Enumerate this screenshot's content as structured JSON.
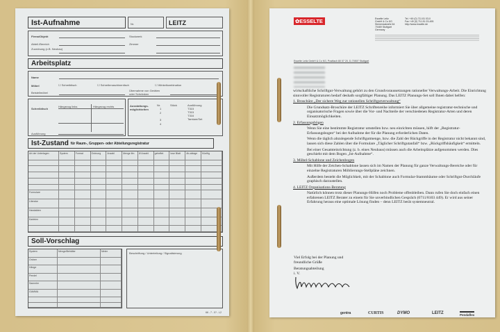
{
  "left_form": {
    "title": "Ist-Aufnahme",
    "no_label": "Nr.",
    "brand": "LEITZ",
    "fields": [
      "Firma/Objekt",
      "Abteil./Bereich",
      "Zuordnung (z.B. Neubau)",
      "Stockwerk",
      "Zimmer"
    ],
    "section_arbeitsplatz": "Arbeitsplatz",
    "name_label": "Name",
    "moebel_label": "Möbel",
    "beistell_label": "Beistellmöbel",
    "checkboxes": [
      "Schreibtisch",
      "Schreibmaschinentisch",
      "Winkelkombination"
    ],
    "uebernahme": "Übernahme von Geräten oder Schränken",
    "schreibtisch": "Schreibtisch",
    "haengezug_links": "Hängezug links",
    "haengezug_rechts": "Hängezug rechts",
    "ausfuehrung": "Ausführung",
    "ausstattung": "Ausstattungs-möglichkeiten",
    "cols_aus": [
      "Nr.",
      "Stück",
      "Ausführung"
    ],
    "aus_rows": [
      "1",
      "2",
      "3",
      "4"
    ],
    "aus_vals": [
      "T315",
      "T315",
      "T316",
      "Tamtam/Set"
    ],
    "section_ist": "Ist-Zustand",
    "section_ist_sub": "für Raum-, Gruppen- oder Abteilungsregistratur",
    "ist_cols": [
      "Art der Unterlagen",
      "System",
      "Format",
      "Ordnung",
      "Anzahl",
      "Menge lfm",
      "Ø Anzahl",
      "geheftet",
      "lose Blatt",
      "Ab-ablage",
      "Künftig"
    ],
    "ist_rows": [
      "",
      "",
      "",
      "",
      "",
      "Formulare",
      "Literatur",
      "Handakten",
      "Karteien",
      ""
    ],
    "section_soll": "Soll-Vorschlag",
    "soll_cols": [
      "System",
      "Menge/Behälter",
      "Meter"
    ],
    "soll_rows": [
      "Ordner",
      "Hänge",
      "Pendel",
      "Sammler",
      "GAMMA",
      "",
      ""
    ],
    "beschriftung": "Beschriftung / Unterteilung / Signalisierung",
    "footer_code": "66 - 7 - 0? - L2"
  },
  "letter": {
    "logo": "ESSELTE",
    "logo_color": "#d8262b",
    "company": [
      "Esselte Leitz",
      "GmbH & Co KG",
      "Siemensstraße 64",
      "70469 Stuttgart",
      "Germany"
    ],
    "contact": [
      "Tel. +49 (0) 711 81 03-0",
      "Fax +49 (0) 711 81 03-495",
      "http://www.esselte.de"
    ],
    "sender_line": "Esselte Leitz GmbH & Co KG, Postfach 80 07 20, D-70507 Stuttgart",
    "paragraphs": [
      {
        "type": "p",
        "text": "wirtschaftliche Schriftgut-Verwaltung gehört zu den Grundvoraussetzungen rationeller Verwaltungs-Arbeit. Die Einrichtung sinnvoller Registraturen bedarf deshalb sorgfältiger Planung. Das LEITZ Planungs-Set soll Ihnen dabei helfen:"
      },
      {
        "type": "h",
        "text": "1.   Broschüre „Der sichere Weg zur rationellen Schriftgutverwaltung“"
      },
      {
        "type": "i",
        "text": "Die Grundsatz-Broschüre der LEITZ Schriftenreihe informiert Sie über allgemeine registratur-technische und organisatorische Fragen sowie über die Vor- und Nachteile der verschiedenen Registratur-Arten und deren Einsatzmöglichkeiten."
      },
      {
        "type": "h",
        "text": "2.   Erfassungsbögen"
      },
      {
        "type": "i",
        "text": "Wenn Sie eine bestimmte Registratur umstellen bzw. neu einrichten müssen, hilft der „Registratur-Erfassungsbogen“ bei der Aufnahme der für die Planung erforderlichen Daten."
      },
      {
        "type": "i",
        "text": "Wenn die täglich abzulegende Schriftgutmenge, bzw. die Zahl der Rückgriffe in der Registratur nicht bekannt sind, lassen sich diese Zahlen über die Formulare „Täglicher Schriftgutanfall“ bzw. „Rückgriffshäufigkeit“ ermitteln."
      },
      {
        "type": "i",
        "text": "Bei einer Gesamteinrichtung (z. b. eines Neubaus) müssen auch die Arbeitsplätze aufgenommen werden. Dies geschieht mit dem Bogen „Ist-Aufnahme“."
      },
      {
        "type": "h",
        "text": "3.   Möbel-Schablone und Zeichenbogen"
      },
      {
        "type": "i",
        "text": "Mit Hilfe der Zeichen-Schablone lassen sich im Namen der Planung für ganze Verwaltungs-Bereiche oder für einzelne Registraturen Möblierungs-Stellpläne zeichnen."
      },
      {
        "type": "i",
        "text": "Außerdem besteht die Möglichkeit, mit der Schablone auch Formular-Stammbäume oder Schriftgut-Durchläufe graphisch darzustellen."
      },
      {
        "type": "h",
        "text": "4.   LEITZ Organisations-Beratung"
      },
      {
        "type": "i",
        "text": "Natürlich können trotz dieser Planungs-Hilfen noch Probleme offenbleiben. Dann rufen Sie doch einfach einen erfahrenen LEITZ Berater zu einem für Sie unverbindlichen Gespräch (0711/8103 449). Er wird aus seiner Erfahrung heraus eine optimale Lösung finden – denn LEITZ berät systemneutral."
      }
    ],
    "closing": [
      "Viel Erfolg bei der Planung und",
      "freundliche Grüße"
    ],
    "dept": [
      "Beratungsabteilung",
      "i. V."
    ],
    "brands": [
      "gentra",
      "CURTIS",
      "DYMO",
      "LEITZ",
      "Pendaflex"
    ]
  }
}
